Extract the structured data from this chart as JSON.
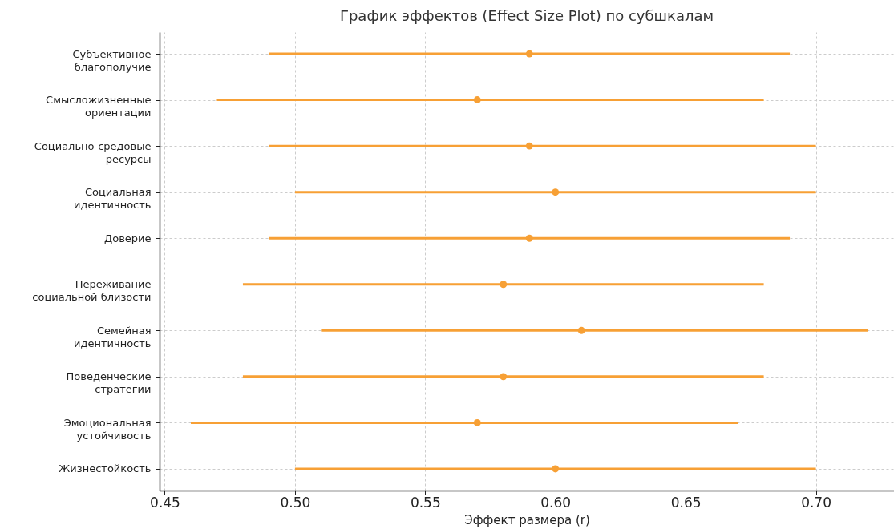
{
  "chart_data": {
    "type": "scatter",
    "orientation": "horizontal",
    "title": "График эффектов (Effect Size Plot) по субшкалам",
    "xlabel": "Эффект размера (r)",
    "categories": [
      "Субъективное\nблагополучие",
      "Смысложизненные\nориентации",
      "Социально-средовые\nресурсы",
      "Социальная\nидентичность",
      "Доверие",
      "Переживание\nсоциальной близости",
      "Семейная\nидентичность",
      "Поведенческие\nстратегии",
      "Эмоциональная\nустойчивость",
      "Жизнестойкость"
    ],
    "values": [
      0.59,
      0.57,
      0.59,
      0.6,
      0.59,
      0.58,
      0.61,
      0.58,
      0.57,
      0.6
    ],
    "errors": [
      [
        0.49,
        0.69
      ],
      [
        0.47,
        0.68
      ],
      [
        0.49,
        0.7
      ],
      [
        0.5,
        0.7
      ],
      [
        0.49,
        0.69
      ],
      [
        0.48,
        0.68
      ],
      [
        0.51,
        0.72
      ],
      [
        0.48,
        0.68
      ],
      [
        0.46,
        0.67
      ],
      [
        0.5,
        0.7
      ]
    ],
    "color": "#f7a035",
    "marker": "circle",
    "grid": true,
    "xlim": [
      0.448,
      0.73
    ],
    "xticks": [
      {
        "value": 0.45,
        "label": "0.45"
      },
      {
        "value": 0.5,
        "label": "0.50"
      },
      {
        "value": 0.55,
        "label": "0.55"
      },
      {
        "value": 0.6,
        "label": "0.60"
      },
      {
        "value": 0.65,
        "label": "0.65"
      },
      {
        "value": 0.7,
        "label": "0.70"
      }
    ]
  }
}
